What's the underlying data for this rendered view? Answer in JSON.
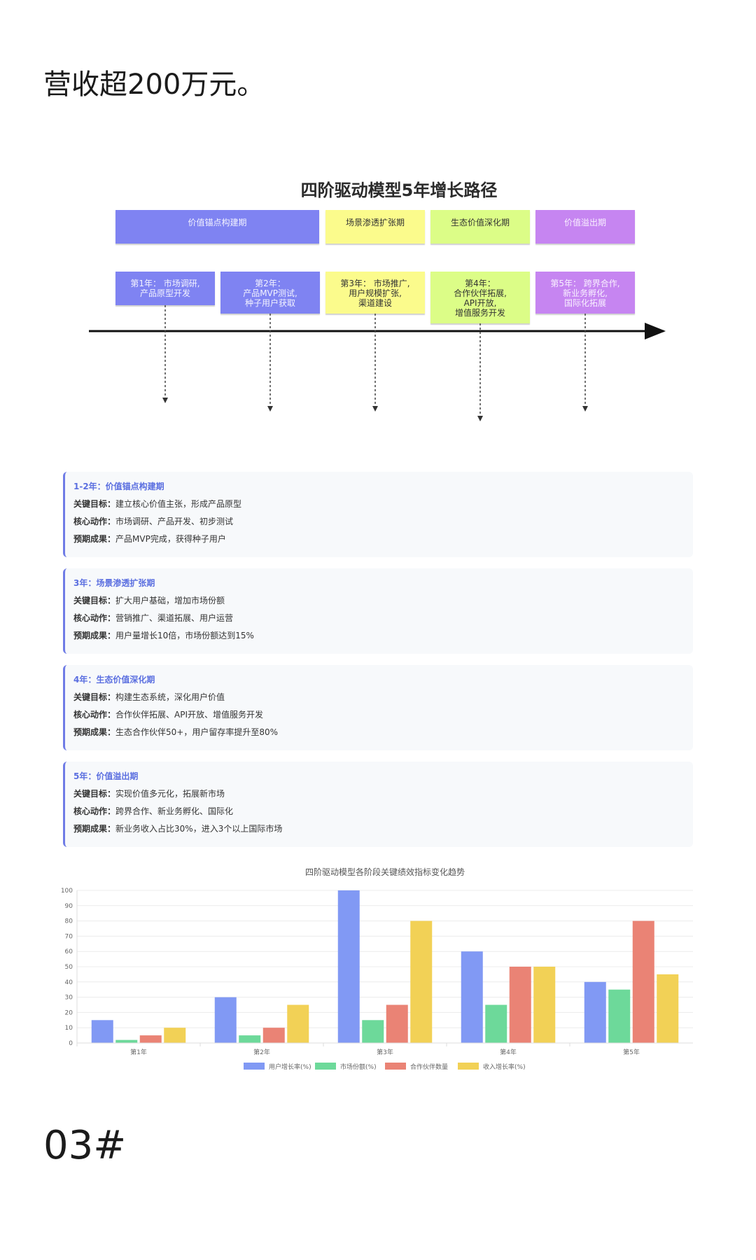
{
  "lead_text": "营收超200万元。",
  "section_mark": "03#",
  "diagram": {
    "title": "四阶驱动模型5年增长路径",
    "phases": [
      {
        "label": "价值锚点构建期",
        "color": "#7f83f2"
      },
      {
        "label": "场景渗透扩张期",
        "color": "#fbfb8c"
      },
      {
        "label": "生态价值深化期",
        "color": "#dcfd87"
      },
      {
        "label": "价值溢出期",
        "color": "#c685f1"
      }
    ],
    "years": [
      {
        "text": "第1年： 市场调研,\n产品原型开发"
      },
      {
        "text": "第2年：\n产品MVP测试,\n种子用户获取"
      },
      {
        "text": "第3年： 市场推广,\n用户规模扩张,\n渠道建设"
      },
      {
        "text": "第4年：\n合作伙伴拓展,\nAPI开放,\n增值服务开发"
      },
      {
        "text": "第5年： 跨界合作,\n新业务孵化,\n国际化拓展"
      }
    ]
  },
  "stages": [
    {
      "title": "1-2年：价值锚点构建期",
      "goal_label": "关键目标：",
      "goal": "建立核心价值主张，形成产品原型",
      "action_label": "核心动作：",
      "action": "市场调研、产品开发、初步测试",
      "result_label": "预期成果：",
      "result": "产品MVP完成，获得种子用户"
    },
    {
      "title": "3年：场景渗透扩张期",
      "goal_label": "关键目标：",
      "goal": "扩大用户基础，增加市场份额",
      "action_label": "核心动作：",
      "action": "营销推广、渠道拓展、用户运营",
      "result_label": "预期成果：",
      "result": "用户量增长10倍，市场份额达到15%"
    },
    {
      "title": "4年：生态价值深化期",
      "goal_label": "关键目标：",
      "goal": "构建生态系统，深化用户价值",
      "action_label": "核心动作：",
      "action": "合作伙伴拓展、API开放、增值服务开发",
      "result_label": "预期成果：",
      "result": "生态合作伙伴50+，用户留存率提升至80%"
    },
    {
      "title": "5年：价值溢出期",
      "goal_label": "关键目标：",
      "goal": "实现价值多元化，拓展新市场",
      "action_label": "核心动作：",
      "action": "跨界合作、新业务孵化、国际化",
      "result_label": "预期成果：",
      "result": "新业务收入占比30%，进入3个以上国际市场"
    }
  ],
  "chart_data": {
    "type": "bar",
    "title": "四阶驱动模型各阶段关键绩效指标变化趋势",
    "categories": [
      "第1年",
      "第2年",
      "第3年",
      "第4年",
      "第5年"
    ],
    "series": [
      {
        "name": "用户增长率(%)",
        "color": "#8199f4",
        "values": [
          15,
          30,
          100,
          60,
          40
        ]
      },
      {
        "name": "市场份额(%)",
        "color": "#6dd99a",
        "values": [
          2,
          5,
          15,
          25,
          35
        ]
      },
      {
        "name": "合作伙伴数量",
        "color": "#ea8375",
        "values": [
          5,
          10,
          25,
          50,
          80
        ]
      },
      {
        "name": "收入增长率(%)",
        "color": "#f2d156",
        "values": [
          10,
          25,
          80,
          50,
          45
        ]
      }
    ],
    "ylim": [
      0,
      100
    ],
    "yticks": [
      0,
      10,
      20,
      30,
      40,
      50,
      60,
      70,
      80,
      90,
      100
    ],
    "legend_position": "bottom",
    "grid": true
  }
}
